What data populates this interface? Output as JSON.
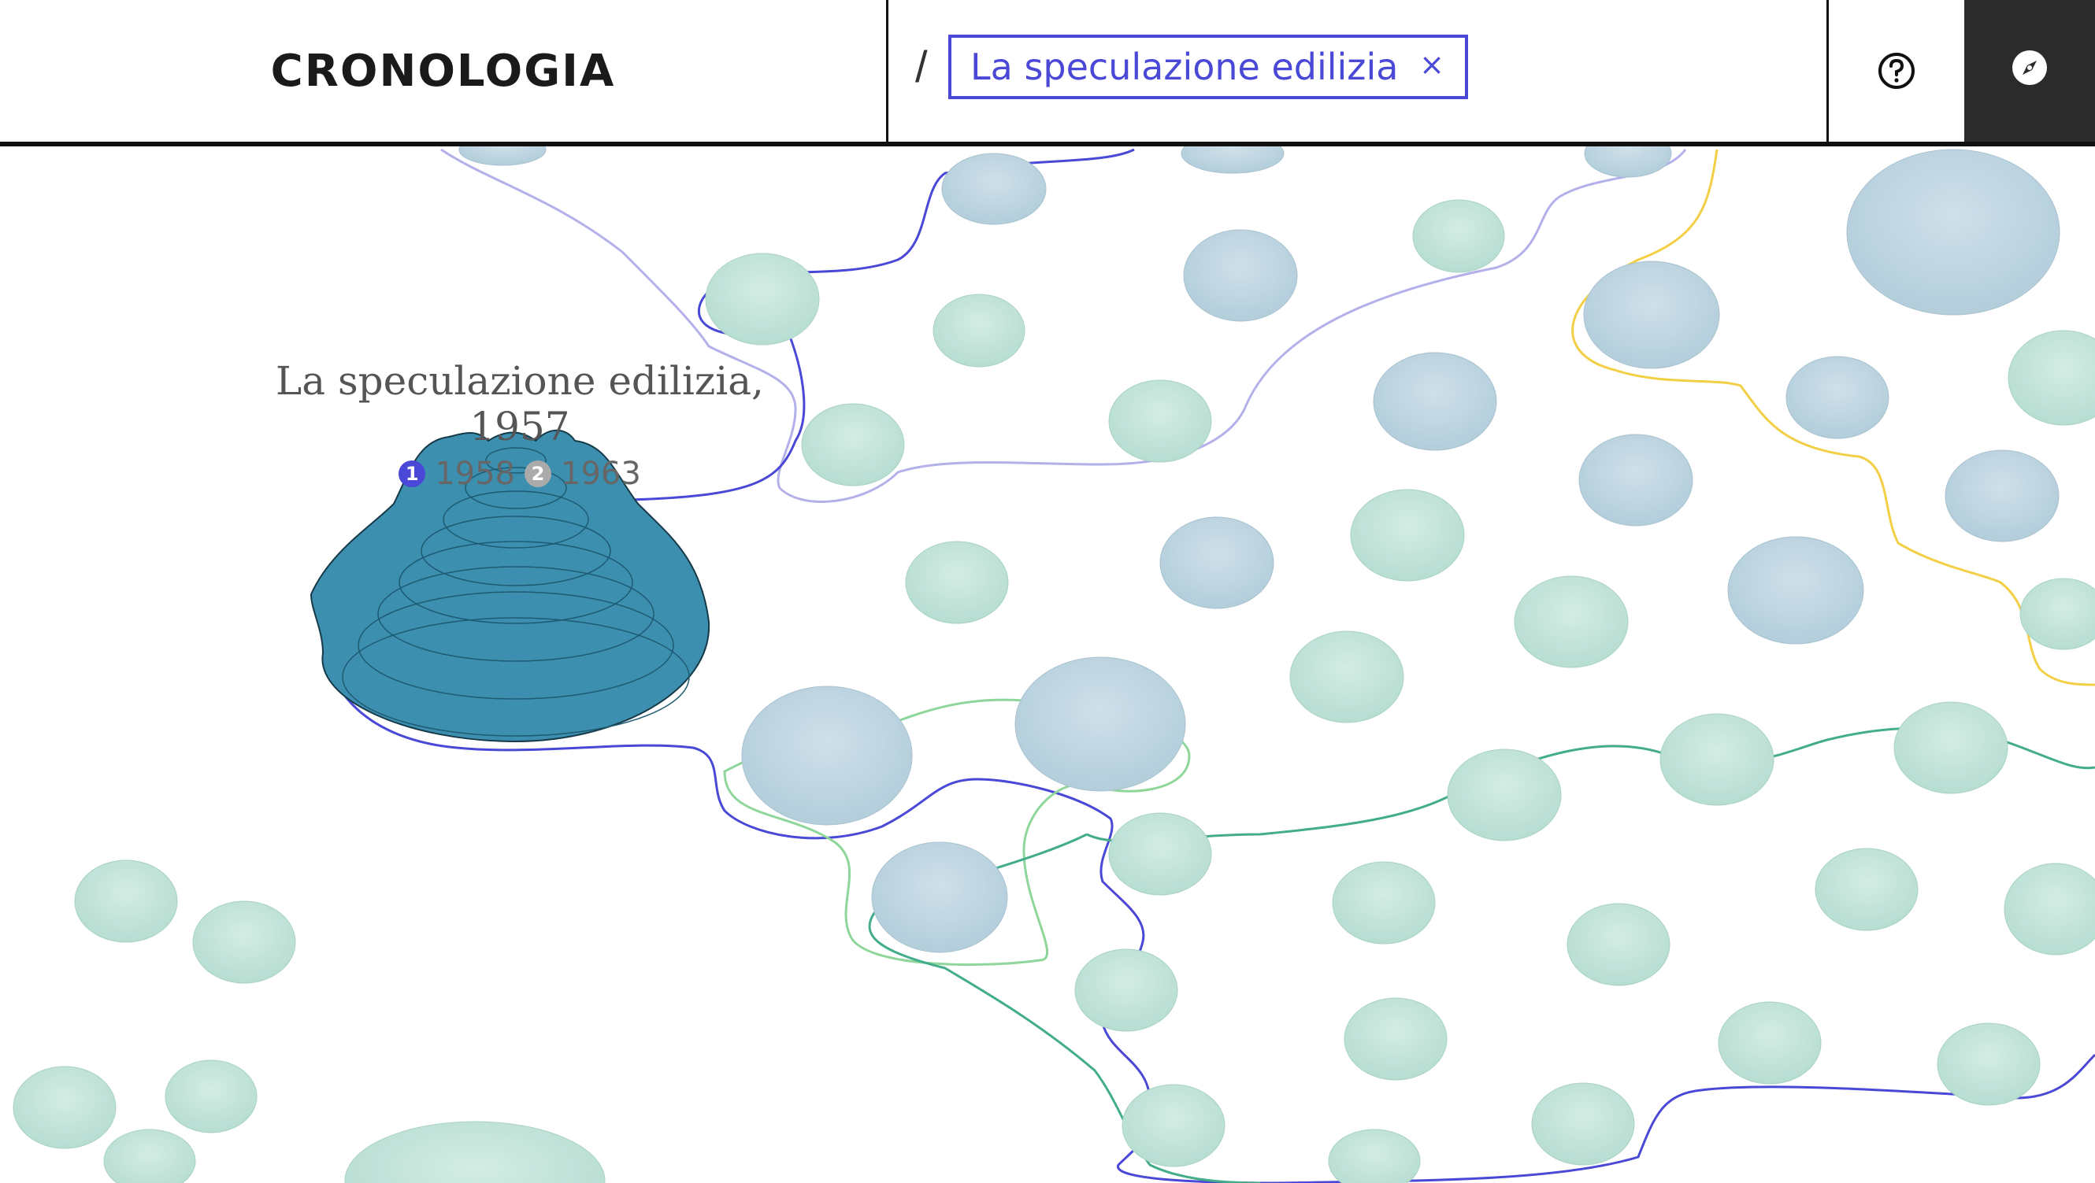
{
  "header": {
    "title": "CRONOLOGIA",
    "separator": "/",
    "filter_label": "La speculazione edilizia",
    "close_symbol": "×"
  },
  "active_item": {
    "title": "La speculazione edilizia, 1957",
    "badge_1": "1",
    "year_1": "1958",
    "badge_2": "2",
    "year_2": "1963"
  },
  "icons": {
    "help": "question-circle-icon",
    "compass": "compass-icon"
  },
  "colors": {
    "accent": "#4a48d6",
    "active_mound": "#3d8fb0",
    "mound_blue": "#b9d3df",
    "mound_green": "#bfe3d8",
    "line_lavender": "#b3b0ea",
    "line_yellow": "#f2cf45",
    "line_green": "#8fd69a",
    "line_teal": "#43ad8b",
    "header_dark": "#2b2b2b"
  }
}
